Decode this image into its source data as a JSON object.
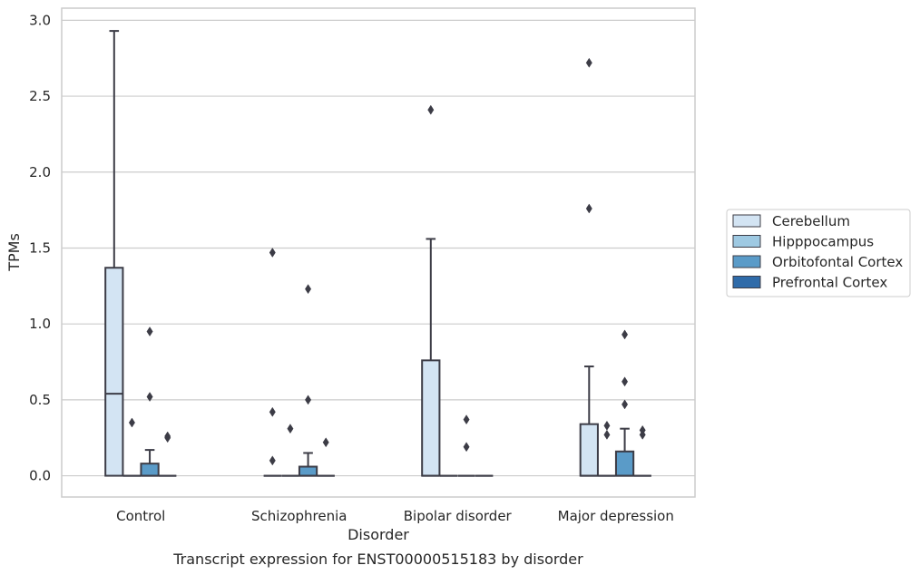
{
  "chart_data": {
    "type": "box",
    "caption": "Transcript expression for ENST00000515183 by disorder",
    "xlabel": "Disorder",
    "ylabel": "TPMs",
    "ylim": [
      -0.14,
      3.08
    ],
    "yticks": [
      0.0,
      0.5,
      1.0,
      1.5,
      2.0,
      2.5,
      3.0
    ],
    "ytick_labels": [
      "0.0",
      "0.5",
      "1.0",
      "1.5",
      "2.0",
      "2.5",
      "3.0"
    ],
    "categories": [
      "Control",
      "Schizophrenia",
      "Bipolar disorder",
      "Major depression"
    ],
    "grid": "horizontal",
    "legend_position": "right",
    "series": [
      {
        "name": "Cerebellum",
        "color": "#d3e4f3",
        "boxes": [
          {
            "whisker_low": 0,
            "q1": 0,
            "median": 0.54,
            "q3": 1.37,
            "whisker_high": 2.93,
            "outliers": []
          },
          {
            "whisker_low": 0,
            "q1": 0,
            "median": 0,
            "q3": 0,
            "whisker_high": 0,
            "outliers": [
              0.1,
              0.42,
              1.47
            ]
          },
          {
            "whisker_low": 0,
            "q1": 0,
            "median": 0,
            "q3": 0.76,
            "whisker_high": 1.56,
            "outliers": [
              2.41
            ]
          },
          {
            "whisker_low": 0,
            "q1": 0,
            "median": 0,
            "q3": 0.34,
            "whisker_high": 0.72,
            "outliers": [
              1.76,
              2.72
            ]
          }
        ]
      },
      {
        "name": "Hipppocampus",
        "color": "#9ec9e2",
        "boxes": [
          {
            "whisker_low": 0,
            "q1": 0,
            "median": 0,
            "q3": 0,
            "whisker_high": 0,
            "outliers": [
              0.35
            ]
          },
          {
            "whisker_low": 0,
            "q1": 0,
            "median": 0,
            "q3": 0,
            "whisker_high": 0,
            "outliers": [
              0.31
            ]
          },
          {
            "whisker_low": 0,
            "q1": 0,
            "median": 0,
            "q3": 0,
            "whisker_high": 0,
            "outliers": []
          },
          {
            "whisker_low": 0,
            "q1": 0,
            "median": 0,
            "q3": 0,
            "whisker_high": 0,
            "outliers": [
              0.27,
              0.33
            ]
          }
        ]
      },
      {
        "name": "Orbitofontal Cortex",
        "color": "#5a9bc8",
        "boxes": [
          {
            "whisker_low": 0,
            "q1": 0,
            "median": 0,
            "q3": 0.08,
            "whisker_high": 0.17,
            "outliers": [
              0.52,
              0.95
            ]
          },
          {
            "whisker_low": 0,
            "q1": 0,
            "median": 0,
            "q3": 0.06,
            "whisker_high": 0.15,
            "outliers": [
              0.5,
              1.23
            ]
          },
          {
            "whisker_low": 0,
            "q1": 0,
            "median": 0,
            "q3": 0,
            "whisker_high": 0,
            "outliers": [
              0.19,
              0.37
            ]
          },
          {
            "whisker_low": 0,
            "q1": 0,
            "median": 0,
            "q3": 0.16,
            "whisker_high": 0.31,
            "outliers": [
              0.47,
              0.62,
              0.93
            ]
          }
        ]
      },
      {
        "name": "Prefrontal Cortex",
        "color": "#2f6ba9",
        "boxes": [
          {
            "whisker_low": 0,
            "q1": 0,
            "median": 0,
            "q3": 0,
            "whisker_high": 0,
            "outliers": [
              0.25,
              0.26
            ]
          },
          {
            "whisker_low": 0,
            "q1": 0,
            "median": 0,
            "q3": 0,
            "whisker_high": 0,
            "outliers": [
              0.22
            ]
          },
          {
            "whisker_low": 0,
            "q1": 0,
            "median": 0,
            "q3": 0,
            "whisker_high": 0,
            "outliers": []
          },
          {
            "whisker_low": 0,
            "q1": 0,
            "median": 0,
            "q3": 0,
            "whisker_high": 0,
            "outliers": [
              0.27,
              0.3
            ]
          }
        ]
      }
    ]
  }
}
